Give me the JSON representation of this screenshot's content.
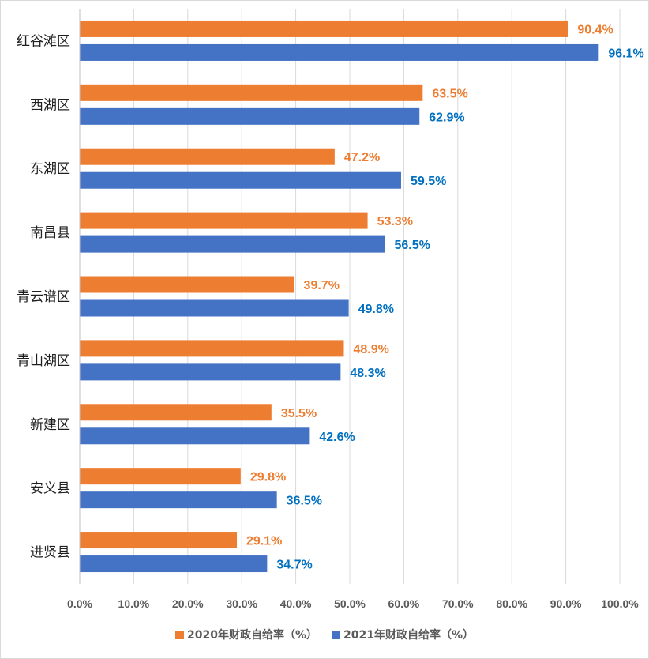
{
  "chart_data": {
    "type": "bar",
    "orientation": "horizontal",
    "title": "",
    "xlabel": "",
    "ylabel": "",
    "categories": [
      "红谷滩区",
      "西湖区",
      "东湖区",
      "南昌县",
      "青云谱区",
      "青山湖区",
      "新建区",
      "安义县",
      "进贤县"
    ],
    "series": [
      {
        "name": "2020年财政自给率（%）",
        "color": "#ed7d31",
        "label_color": "#ed7d31",
        "values": [
          90.4,
          63.5,
          47.2,
          53.3,
          39.7,
          48.9,
          35.5,
          29.8,
          29.1
        ],
        "labels": [
          "90.4%",
          "63.5%",
          "47.2%",
          "53.3%",
          "39.7%",
          "48.9%",
          "35.5%",
          "29.8%",
          "29.1%"
        ]
      },
      {
        "name": "2021年财政自给率（%）",
        "color": "#4472c4",
        "label_color": "#0070c0",
        "values": [
          96.1,
          62.9,
          59.5,
          56.5,
          49.8,
          48.3,
          42.6,
          36.5,
          34.7
        ],
        "labels": [
          "96.1%",
          "62.9%",
          "59.5%",
          "56.5%",
          "49.8%",
          "48.3%",
          "42.6%",
          "36.5%",
          "34.7%"
        ]
      }
    ],
    "xlim": [
      0,
      100
    ],
    "ticks": [
      0,
      10,
      20,
      30,
      40,
      50,
      60,
      70,
      80,
      90,
      100
    ],
    "tick_labels": [
      "0.0%",
      "10.0%",
      "20.0%",
      "30.0%",
      "40.0%",
      "50.0%",
      "60.0%",
      "70.0%",
      "80.0%",
      "90.0%",
      "100.0%"
    ],
    "grid": true,
    "legend_position": "bottom"
  }
}
